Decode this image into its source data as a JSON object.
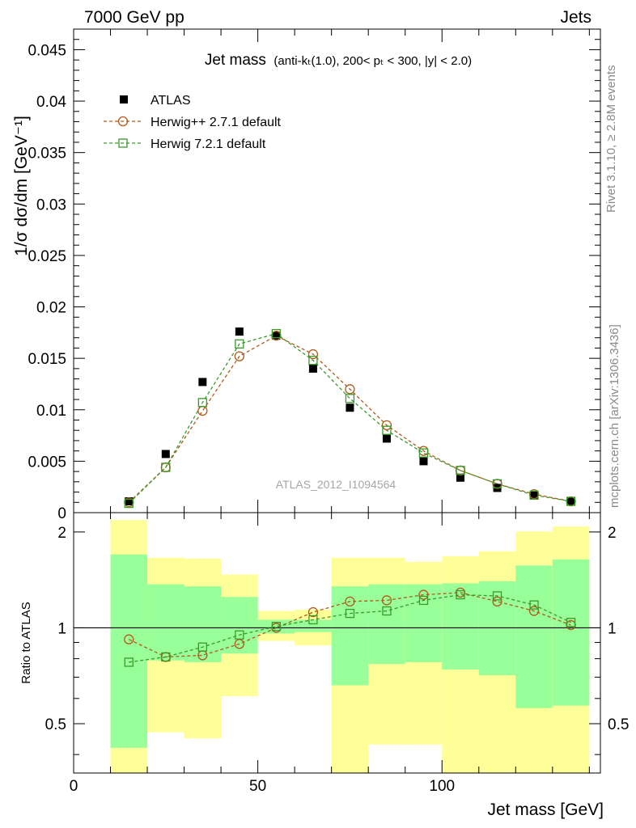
{
  "header": {
    "left": "7000 GeV pp",
    "right": "Jets"
  },
  "side": {
    "rivet": "Rivet 3.1.10, ≥ 2.8M events",
    "mcplots": "mcplots.cern.ch [arXiv:1306.3436]"
  },
  "colors": {
    "data": "#000000",
    "herwigpp": "#b05a1a",
    "herwig7": "#3a9a2a",
    "band_inner": "#99ff99",
    "band_outer": "#ffff99"
  },
  "chart_data": [
    {
      "type": "scatter",
      "title_main": "Jet mass",
      "title_detail": "(anti-kₜ(1.0), 200< pₜ < 300, |y| < 2.0)",
      "xlabel": "Jet mass [GeV]",
      "ylabel": "1/σ dσ/dm [GeV⁻¹]",
      "xlim": [
        0,
        143
      ],
      "ylim": [
        0,
        0.047
      ],
      "yticks": [
        "0",
        "0.005",
        "0.01",
        "0.015",
        "0.02",
        "0.025",
        "0.03",
        "0.035",
        "0.04",
        "0.045"
      ],
      "watermark": "ATLAS_2012_I1094564",
      "legend_position": "top-left",
      "x": [
        15,
        25,
        35,
        45,
        55,
        65,
        75,
        85,
        95,
        105,
        115,
        125,
        135
      ],
      "series": [
        {
          "name": "ATLAS",
          "marker": "filled-square",
          "values": [
            0.0011,
            0.0057,
            0.0127,
            0.0176,
            0.0172,
            0.014,
            0.0102,
            0.0072,
            0.005,
            0.0034,
            0.0024,
            0.0017,
            0.0011
          ]
        },
        {
          "name": "Herwig++ 2.7.1 default",
          "marker": "open-circle",
          "values": [
            0.001,
            0.0044,
            0.0099,
            0.0152,
            0.0172,
            0.0154,
            0.012,
            0.0085,
            0.006,
            0.0041,
            0.0028,
            0.0018,
            0.0011
          ]
        },
        {
          "name": "Herwig 7.2.1 default",
          "marker": "open-square",
          "values": [
            0.0009,
            0.0044,
            0.0107,
            0.0164,
            0.0174,
            0.0148,
            0.0111,
            0.008,
            0.0058,
            0.0041,
            0.0028,
            0.0017,
            0.0011
          ]
        }
      ]
    },
    {
      "type": "line",
      "ylabel": "Ratio to ATLAS",
      "xlabel": "Jet mass [GeV]",
      "xlim": [
        0,
        143
      ],
      "ylim": [
        0.35,
        2.3
      ],
      "yticks": [
        "0.5",
        "1",
        "2"
      ],
      "xticks": [
        "0",
        "50",
        "100"
      ],
      "reference_line": 1,
      "bins": [
        [
          10,
          20
        ],
        [
          20,
          30
        ],
        [
          30,
          40
        ],
        [
          40,
          50
        ],
        [
          50,
          60
        ],
        [
          60,
          70
        ],
        [
          70,
          80
        ],
        [
          80,
          90
        ],
        [
          90,
          100
        ],
        [
          100,
          110
        ],
        [
          110,
          120
        ],
        [
          120,
          130
        ],
        [
          130,
          140
        ]
      ],
      "band_inner": [
        [
          0.42,
          1.7
        ],
        [
          0.79,
          1.37
        ],
        [
          0.78,
          1.35
        ],
        [
          0.83,
          1.25
        ],
        [
          0.96,
          1.06
        ],
        [
          0.97,
          1.06
        ],
        [
          0.66,
          1.35
        ],
        [
          0.77,
          1.37
        ],
        [
          0.78,
          1.37
        ],
        [
          0.74,
          1.38
        ],
        [
          0.71,
          1.4
        ],
        [
          0.56,
          1.57
        ],
        [
          0.57,
          1.64
        ]
      ],
      "band_outer": [
        [
          0.35,
          2.18
        ],
        [
          0.47,
          1.66
        ],
        [
          0.45,
          1.65
        ],
        [
          0.61,
          1.47
        ],
        [
          0.91,
          1.13
        ],
        [
          0.88,
          1.14
        ],
        [
          0.35,
          1.66
        ],
        [
          0.43,
          1.66
        ],
        [
          0.43,
          1.61
        ],
        [
          0.35,
          1.68
        ],
        [
          0.35,
          1.74
        ],
        [
          0.35,
          2.01
        ],
        [
          0.35,
          2.08
        ]
      ],
      "x": [
        15,
        25,
        35,
        45,
        55,
        65,
        75,
        85,
        95,
        105,
        115,
        125,
        135
      ],
      "series": [
        {
          "name": "Herwig++ 2.7.1 default",
          "values": [
            0.92,
            0.81,
            0.82,
            0.89,
            1.0,
            1.12,
            1.21,
            1.22,
            1.27,
            1.29,
            1.21,
            1.13,
            1.02
          ]
        },
        {
          "name": "Herwig 7.2.1 default",
          "values": [
            0.78,
            0.81,
            0.87,
            0.95,
            1.01,
            1.06,
            1.11,
            1.13,
            1.22,
            1.27,
            1.26,
            1.18,
            1.04
          ]
        }
      ]
    }
  ]
}
